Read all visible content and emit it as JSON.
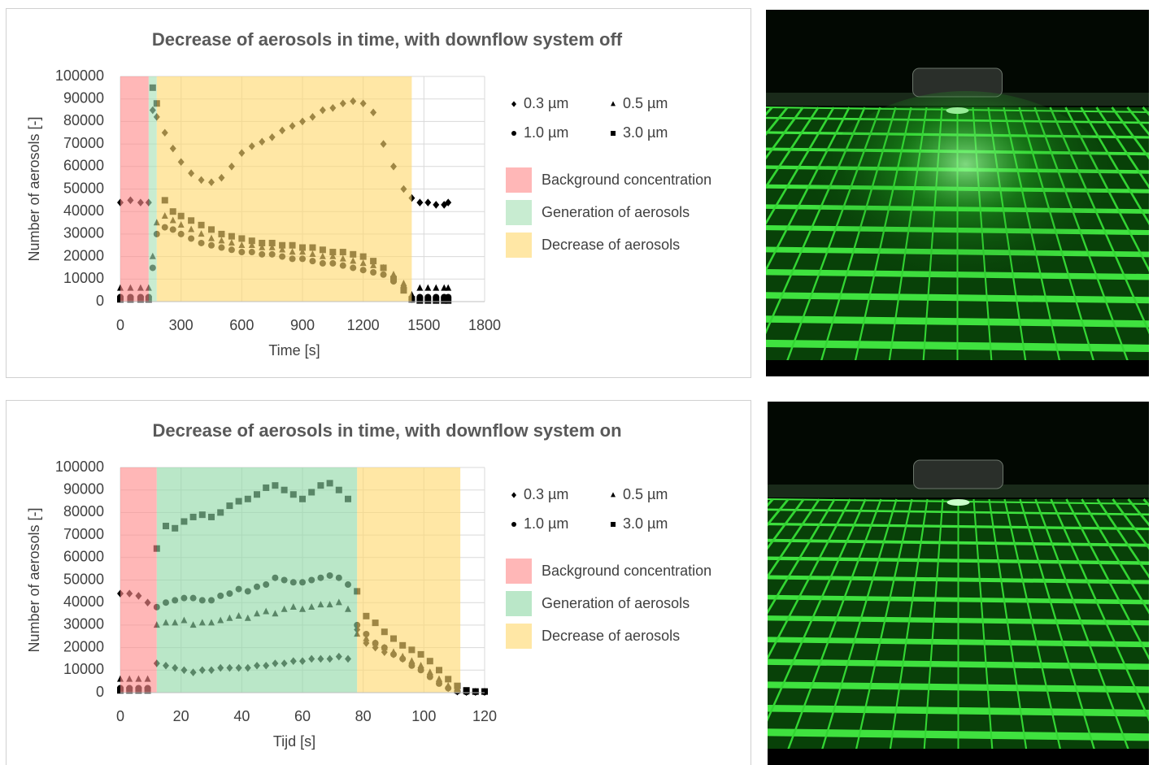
{
  "chart_data": [
    {
      "type": "scatter",
      "title": "Decrease of aerosols in time, with downflow system off",
      "x_label": "Time [s]",
      "y_label": "Number of aerosols [-]",
      "xlim": [
        0,
        1800
      ],
      "xticks": [
        0,
        300,
        600,
        900,
        1200,
        1500,
        1800
      ],
      "ylim": [
        0,
        100000
      ],
      "yticks": [
        0,
        10000,
        20000,
        30000,
        40000,
        50000,
        60000,
        70000,
        80000,
        90000,
        100000
      ],
      "grid": true,
      "regions": [
        {
          "name": "Background concentration",
          "color": "#ff8a8a",
          "xrange": [
            0,
            140
          ]
        },
        {
          "name": "Generation of aerosols",
          "color": "#a6e0b4",
          "xrange": [
            140,
            180
          ]
        },
        {
          "name": "Decrease of aerosols",
          "color": "#ffd86e",
          "xrange": [
            180,
            1440
          ]
        }
      ],
      "x": [
        0,
        50,
        100,
        140,
        160,
        180,
        220,
        260,
        300,
        350,
        400,
        450,
        500,
        550,
        600,
        650,
        700,
        750,
        800,
        850,
        900,
        950,
        1000,
        1050,
        1100,
        1150,
        1200,
        1250,
        1300,
        1350,
        1400,
        1440,
        1480,
        1520,
        1560,
        1600,
        1620
      ],
      "series": [
        {
          "name": "0.3 µm",
          "marker": "diamond",
          "color": "#000000",
          "values": [
            44000,
            45000,
            44000,
            44000,
            85000,
            82000,
            75000,
            68000,
            62000,
            57000,
            54000,
            53000,
            55000,
            60000,
            66000,
            69000,
            71000,
            73000,
            76000,
            78000,
            80000,
            82000,
            85000,
            86000,
            88000,
            89000,
            88000,
            84000,
            70000,
            60000,
            50000,
            46000,
            44000,
            44000,
            43000,
            43000,
            44000
          ]
        },
        {
          "name": "0.5 µm",
          "marker": "triangle",
          "color": "#000000",
          "values": [
            6000,
            6000,
            6000,
            6000,
            20000,
            35000,
            38000,
            36000,
            34000,
            32000,
            30000,
            28000,
            27000,
            26000,
            25000,
            25000,
            24000,
            24000,
            23000,
            22000,
            22000,
            21000,
            20000,
            20000,
            19000,
            18000,
            17000,
            16000,
            15000,
            12000,
            8000,
            3000,
            6000,
            6000,
            6000,
            6000,
            6000
          ]
        },
        {
          "name": "1.0 µm",
          "marker": "circle",
          "color": "#000000",
          "values": [
            2000,
            2000,
            2000,
            2000,
            15000,
            30000,
            33000,
            32000,
            30000,
            28000,
            26000,
            25000,
            24000,
            23000,
            22000,
            22000,
            21000,
            21000,
            20000,
            19000,
            19000,
            18000,
            17000,
            17000,
            16000,
            15000,
            14000,
            13000,
            12000,
            9000,
            6000,
            1000,
            2000,
            2000,
            2000,
            2000,
            2000
          ]
        },
        {
          "name": "3.0 µm",
          "marker": "square",
          "color": "#000000",
          "values": [
            1000,
            1000,
            1000,
            1000,
            95000,
            88000,
            45000,
            40000,
            38000,
            36000,
            34000,
            32000,
            30000,
            29000,
            28000,
            27000,
            26000,
            26000,
            25000,
            25000,
            24000,
            24000,
            23000,
            22000,
            22000,
            21000,
            20000,
            18000,
            15000,
            10000,
            5000,
            1000,
            500,
            500,
            500,
            500,
            500
          ]
        }
      ]
    },
    {
      "type": "scatter",
      "title": "Decrease of aerosols in time, with downflow system on",
      "x_label": "Tijd [s]",
      "y_label": "Number of aerosols [-]",
      "xlim": [
        0,
        120
      ],
      "xticks": [
        0,
        20,
        40,
        60,
        80,
        100,
        120
      ],
      "ylim": [
        0,
        100000
      ],
      "yticks": [
        0,
        10000,
        20000,
        30000,
        40000,
        50000,
        60000,
        70000,
        80000,
        90000,
        100000
      ],
      "grid": true,
      "regions": [
        {
          "name": "Background concentration",
          "color": "#ff8a8a",
          "xrange": [
            0,
            12
          ]
        },
        {
          "name": "Generation of aerosols",
          "color": "#8fd8a6",
          "xrange": [
            12,
            78
          ]
        },
        {
          "name": "Decrease of aerosols",
          "color": "#ffd86e",
          "xrange": [
            78,
            112
          ]
        }
      ],
      "x": [
        0,
        3,
        6,
        9,
        12,
        15,
        18,
        21,
        24,
        27,
        30,
        33,
        36,
        39,
        42,
        45,
        48,
        51,
        54,
        57,
        60,
        63,
        66,
        69,
        72,
        75,
        78,
        81,
        84,
        87,
        90,
        93,
        96,
        99,
        102,
        105,
        108,
        111,
        114,
        117,
        120
      ],
      "series": [
        {
          "name": "0.3 µm",
          "marker": "diamond",
          "color": "#000000",
          "values": [
            44000,
            44000,
            43000,
            40000,
            13000,
            12000,
            11000,
            10000,
            9000,
            10000,
            10000,
            11000,
            11000,
            11000,
            11000,
            12000,
            12000,
            13000,
            13000,
            14000,
            14000,
            15000,
            15000,
            15000,
            16000,
            15000,
            28000,
            22000,
            20000,
            18000,
            17000,
            15000,
            13000,
            11000,
            8000,
            5000,
            2000,
            500,
            300,
            300,
            300
          ]
        },
        {
          "name": "0.5 µm",
          "marker": "triangle",
          "color": "#000000",
          "values": [
            6000,
            6000,
            6000,
            6000,
            30000,
            31000,
            31000,
            32000,
            30000,
            31000,
            31000,
            32000,
            33000,
            34000,
            33000,
            35000,
            36000,
            35000,
            37000,
            38000,
            37000,
            38000,
            39000,
            39000,
            40000,
            37000,
            26000,
            24000,
            22000,
            20000,
            18000,
            16000,
            14000,
            12000,
            9000,
            6000,
            3000,
            800,
            400,
            400,
            400
          ]
        },
        {
          "name": "1.0 µm",
          "marker": "circle",
          "color": "#000000",
          "values": [
            2000,
            2000,
            2000,
            2000,
            38000,
            40000,
            41000,
            42000,
            42000,
            41000,
            41000,
            43000,
            44000,
            46000,
            45000,
            47000,
            48000,
            51000,
            50000,
            49000,
            49000,
            50000,
            51000,
            52000,
            51000,
            48000,
            30000,
            26000,
            22000,
            20000,
            17000,
            15000,
            12000,
            10000,
            7000,
            4000,
            2000,
            600,
            300,
            300,
            300
          ]
        },
        {
          "name": "3.0 µm",
          "marker": "square",
          "color": "#000000",
          "values": [
            1000,
            1000,
            1000,
            1000,
            64000,
            74000,
            73000,
            76000,
            78000,
            79000,
            78000,
            80000,
            83000,
            85000,
            86000,
            88000,
            91000,
            92000,
            90000,
            88000,
            86000,
            89000,
            92000,
            93000,
            90000,
            86000,
            45000,
            34000,
            31000,
            27000,
            24000,
            21000,
            19000,
            17000,
            14000,
            10000,
            6000,
            3000,
            1000,
            500,
            500
          ]
        }
      ]
    }
  ]
}
